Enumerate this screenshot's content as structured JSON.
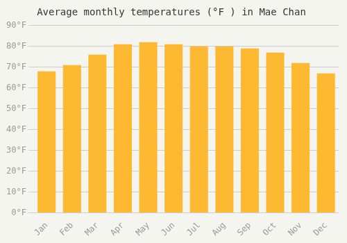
{
  "chart_data": {
    "type": "bar",
    "title": "Average monthly temperatures (°F ) in Mae Chan",
    "categories": [
      "Jan",
      "Feb",
      "Mar",
      "Apr",
      "May",
      "Jun",
      "Jul",
      "Aug",
      "Sep",
      "Oct",
      "Nov",
      "Dec"
    ],
    "values": [
      68,
      71,
      76,
      81,
      82,
      81,
      80,
      80,
      79,
      77,
      72,
      67
    ],
    "color": "#FDB931",
    "ylim": [
      0,
      90
    ],
    "yticks": [
      {
        "value": 0,
        "label": "0°F"
      },
      {
        "value": 10,
        "label": "10°F"
      },
      {
        "value": 20,
        "label": "20°F"
      },
      {
        "value": 30,
        "label": "30°F"
      },
      {
        "value": 40,
        "label": "40°F"
      },
      {
        "value": 50,
        "label": "50°F"
      },
      {
        "value": 60,
        "label": "60°F"
      },
      {
        "value": 70,
        "label": "70°F"
      },
      {
        "value": 80,
        "label": "80°F"
      },
      {
        "value": 90,
        "label": "90°F"
      }
    ],
    "grid": true
  }
}
